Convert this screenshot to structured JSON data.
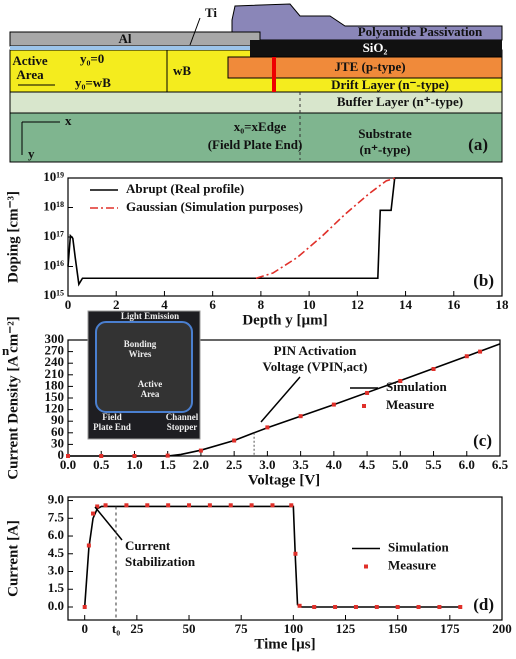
{
  "diagram": {
    "ti": "Ti",
    "al": "Al",
    "polyamide": "Polyamide Passivation",
    "sio2": "SiO₂",
    "active_area": [
      "Active",
      "Area"
    ],
    "y0_top": "y₀=0",
    "y0_bottom": "y₀=wB",
    "wb": "wB",
    "jte": "JTE (p-type)",
    "drift": "Drift Layer (n⁻-type)",
    "buffer": "Buffer Layer (n⁺-type)",
    "axis_x": "x",
    "axis_y": "y",
    "x0": "x₀=xEdge",
    "field_plate": "(Field Plate End)",
    "substrate": "Substrate",
    "substrate_type": "(n⁺-type)",
    "panel_label": "(a)"
  },
  "stray_text": "n",
  "chart_data": [
    {
      "type": "line",
      "log_y": true,
      "xlabel": "Depth y [µm]",
      "ylabel": "Doping [cm⁻³]",
      "panel_label": "(b)",
      "legend": "upper left",
      "xlim": [
        0,
        18
      ],
      "xticks": [
        0,
        2,
        4,
        6,
        8,
        10,
        12,
        14,
        16,
        18
      ],
      "ylim": [
        1000000000000000.0,
        1e+19
      ],
      "yticks": [
        {
          "value": 1000000000000000.0,
          "label": "10¹⁵"
        },
        {
          "value": 1e+16,
          "label": "10¹⁶"
        },
        {
          "value": 1e+17,
          "label": "10¹⁷"
        },
        {
          "value": 1e+18,
          "label": "10¹⁸"
        },
        {
          "value": 1e+19,
          "label": "10¹⁹"
        }
      ],
      "series": [
        {
          "name": "Abrupt (Real profile)",
          "color": "#000000",
          "style": "line",
          "x": [
            0,
            0.1,
            0.2,
            0.3,
            0.45,
            0.6,
            12.85,
            12.95,
            13.4,
            13.55,
            18
          ],
          "values": [
            1e+16,
            1.1e+17,
            9e+16,
            2e+16,
            2500000000000000.0,
            4000000000000000.0,
            4000000000000000.0,
            8e+17,
            8e+17,
            1e+19,
            1e+19
          ]
        },
        {
          "name": "Gaussian (Simulation purposes)",
          "color": "#e0302a",
          "style": "line",
          "dash": "dashdot",
          "x": [
            7.8,
            8.5,
            9.5,
            10.5,
            11.5,
            12.5,
            13.2,
            13.6
          ],
          "values": [
            4000000000000000.0,
            6000000000000000.0,
            2e+16,
            1e+17,
            6e+17,
            3e+18,
            8e+18,
            1e+19
          ]
        }
      ]
    },
    {
      "type": "line",
      "xlabel": "Voltage [V]",
      "ylabel": "Current Density [A cm⁻²]",
      "panel_label": "(c)",
      "legend": "center right",
      "annotations": [
        "PIN Activation",
        "Voltage (VPIN,act)"
      ],
      "inset": [
        "Light Emission",
        "Bonding",
        "Wires",
        "Active",
        "Area",
        "Field",
        "Plate End",
        "Channel",
        "Stopper"
      ],
      "xlim": [
        0,
        6.5
      ],
      "xticks": [
        {
          "value": 0,
          "label": "0.0"
        },
        0.5,
        {
          "value": 1,
          "label": "1.0"
        },
        1.5,
        {
          "value": 2,
          "label": "2.0"
        },
        2.5,
        {
          "value": 3,
          "label": "3.0"
        },
        3.5,
        {
          "value": 4,
          "label": "4.0"
        },
        4.5,
        {
          "value": 5,
          "label": "5.0"
        },
        5.5,
        {
          "value": 6,
          "label": "6.0"
        },
        6.5
      ],
      "ylim": [
        0,
        300
      ],
      "yticks": [
        0,
        30,
        60,
        90,
        120,
        150,
        180,
        210,
        240,
        270,
        300
      ],
      "series": [
        {
          "name": "Simulation",
          "color": "#000000",
          "style": "line",
          "x": [
            0,
            1.5,
            1.7,
            2,
            2.5,
            2.8,
            3,
            4,
            5,
            6,
            6.5
          ],
          "values": [
            0,
            0,
            4,
            15,
            40,
            60,
            73,
            133,
            195,
            258,
            290
          ]
        },
        {
          "name": "Measure",
          "color": "#e0302a",
          "style": "markers",
          "x": [
            0,
            0.5,
            1,
            1.5,
            2,
            2.5,
            3,
            3.5,
            4,
            4.5,
            5,
            5.5,
            6,
            6.2
          ],
          "values": [
            0,
            0,
            0,
            1,
            14,
            40,
            74,
            103,
            133,
            163,
            194,
            225,
            258,
            270
          ]
        }
      ]
    },
    {
      "type": "line",
      "xlabel": "Time [µs]",
      "ylabel": "Current [A]",
      "panel_label": "(d)",
      "legend": "center right",
      "annotations": [
        "Current",
        "Stabilization",
        "t₀"
      ],
      "xlim": [
        -8,
        200
      ],
      "xticks": [
        0,
        25,
        50,
        75,
        100,
        125,
        150,
        175,
        200
      ],
      "ylim": [
        -1.1,
        9.3
      ],
      "yticks": [
        {
          "value": 0,
          "label": "0.0"
        },
        1.5,
        {
          "value": 3,
          "label": "3.0"
        },
        4.5,
        {
          "value": 6,
          "label": "6.0"
        },
        7.5,
        {
          "value": 9,
          "label": "9.0"
        }
      ],
      "series": [
        {
          "name": "Simulation",
          "color": "#000000",
          "style": "line",
          "x": [
            0,
            2,
            4,
            6,
            8,
            10,
            100,
            101,
            102,
            104,
            180
          ],
          "values": [
            0,
            5,
            7.5,
            8.3,
            8.5,
            8.5,
            8.5,
            4,
            0.2,
            0,
            0
          ]
        },
        {
          "name": "Measure",
          "color": "#e0302a",
          "style": "markers",
          "x": [
            0,
            2,
            4,
            6,
            10,
            20,
            30,
            40,
            50,
            60,
            70,
            80,
            90,
            99,
            101,
            103,
            110,
            120,
            130,
            140,
            150,
            160,
            170,
            180
          ],
          "values": [
            0,
            5.2,
            7.9,
            8.5,
            8.6,
            8.6,
            8.6,
            8.6,
            8.6,
            8.6,
            8.6,
            8.6,
            8.6,
            8.6,
            4.5,
            0.1,
            0,
            0,
            0,
            0,
            0,
            0,
            0,
            0
          ]
        }
      ]
    }
  ]
}
